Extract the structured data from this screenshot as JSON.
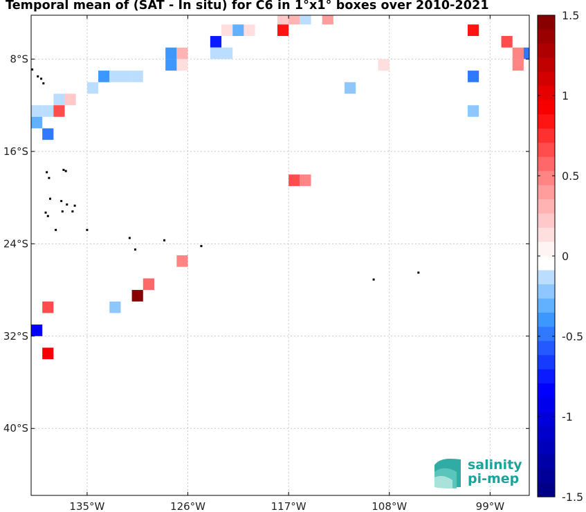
{
  "title": "Temporal mean of (SAT - In situ) for C6 in 1°x1° boxes over 2010-2021",
  "axes": {
    "x_ticks": [
      {
        "label": "135°W",
        "value": -135
      },
      {
        "label": "126°W",
        "value": -126
      },
      {
        "label": "117°W",
        "value": -117
      },
      {
        "label": "108°W",
        "value": -108
      },
      {
        "label": "99°W",
        "value": -99
      }
    ],
    "y_ticks": [
      {
        "label": "8°S",
        "value": -8
      },
      {
        "label": "16°S",
        "value": -16
      },
      {
        "label": "24°S",
        "value": -24
      },
      {
        "label": "32°S",
        "value": -32
      },
      {
        "label": "40°S",
        "value": -40
      }
    ],
    "x_range": [
      -140,
      -95.5
    ],
    "y_range": [
      -45.8,
      -4.2
    ]
  },
  "colorbar": {
    "min": -1.5,
    "max": 1.5,
    "levels": 34,
    "tick_labels": [
      "1.5",
      "1",
      "0.5",
      "0",
      "-0.5",
      "-1",
      "-1.5"
    ],
    "tick_values": [
      1.5,
      1,
      0.5,
      0,
      -0.5,
      -1,
      -1.5
    ],
    "negative_color": "#00007f",
    "zero_color": "#ffffff",
    "positive_color": "#7f0000"
  },
  "logo": {
    "line1": "salinity",
    "line2": "pi-mep",
    "color": "#1aa39a"
  },
  "chart_data": {
    "type": "heatmap",
    "title": "Temporal mean of (SAT - In situ) for C6 in 1°x1° boxes over 2010-2021",
    "x_unit": "longitude (degrees, negative = W)",
    "y_unit": "latitude (degrees, negative = S)",
    "cell_size_deg": 1,
    "cells": [
      {
        "lon": -117.5,
        "lat": -4.5,
        "value": 0.25
      },
      {
        "lon": -116.5,
        "lat": -4.5,
        "value": 0.3
      },
      {
        "lon": -115.5,
        "lat": -4.5,
        "value": -0.1
      },
      {
        "lon": -113.5,
        "lat": -4.5,
        "value": 0.4
      },
      {
        "lon": -122.5,
        "lat": -5.5,
        "value": 0.15
      },
      {
        "lon": -121.5,
        "lat": -5.5,
        "value": -0.35
      },
      {
        "lon": -120.5,
        "lat": -5.5,
        "value": 0.15
      },
      {
        "lon": -117.5,
        "lat": -5.5,
        "value": 0.85
      },
      {
        "lon": -100.5,
        "lat": -5.5,
        "value": 0.8
      },
      {
        "lon": -123.5,
        "lat": -6.5,
        "value": -0.75
      },
      {
        "lon": -97.5,
        "lat": -6.5,
        "value": 0.7
      },
      {
        "lon": -123.5,
        "lat": -7.5,
        "value": -0.1
      },
      {
        "lon": -122.5,
        "lat": -7.5,
        "value": -0.1
      },
      {
        "lon": -127.5,
        "lat": -7.5,
        "value": -0.4
      },
      {
        "lon": -126.5,
        "lat": -7.5,
        "value": 0.35
      },
      {
        "lon": -96.5,
        "lat": -7.5,
        "value": 0.5
      },
      {
        "lon": -95.5,
        "lat": -7.5,
        "value": -0.45
      },
      {
        "lon": -126.5,
        "lat": -8.5,
        "value": 0.15
      },
      {
        "lon": -127.5,
        "lat": -8.5,
        "value": -0.4
      },
      {
        "lon": -96.5,
        "lat": -8.5,
        "value": 0.45
      },
      {
        "lon": -108.5,
        "lat": -8.5,
        "value": 0.12
      },
      {
        "lon": -133.5,
        "lat": -9.5,
        "value": -0.4
      },
      {
        "lon": -132.5,
        "lat": -9.5,
        "value": -0.1
      },
      {
        "lon": -131.5,
        "lat": -9.5,
        "value": -0.1
      },
      {
        "lon": -130.5,
        "lat": -9.5,
        "value": -0.1
      },
      {
        "lon": -100.5,
        "lat": -9.5,
        "value": -0.45
      },
      {
        "lon": -134.5,
        "lat": -10.5,
        "value": -0.15
      },
      {
        "lon": -111.5,
        "lat": -10.5,
        "value": -0.25
      },
      {
        "lon": -137.5,
        "lat": -11.5,
        "value": -0.1
      },
      {
        "lon": -136.5,
        "lat": -11.5,
        "value": 0.2
      },
      {
        "lon": -139.5,
        "lat": -12.5,
        "value": -0.1
      },
      {
        "lon": -138.5,
        "lat": -12.5,
        "value": -0.1
      },
      {
        "lon": -137.5,
        "lat": -12.5,
        "value": 0.65
      },
      {
        "lon": -100.5,
        "lat": -12.5,
        "value": -0.25
      },
      {
        "lon": -139.5,
        "lat": -13.5,
        "value": -0.35
      },
      {
        "lon": -138.5,
        "lat": -14.5,
        "value": -0.5
      },
      {
        "lon": -116.5,
        "lat": -18.5,
        "value": 0.65
      },
      {
        "lon": -115.5,
        "lat": -18.5,
        "value": 0.45
      },
      {
        "lon": -126.5,
        "lat": -25.5,
        "value": 0.45
      },
      {
        "lon": -129.5,
        "lat": -27.5,
        "value": 0.55
      },
      {
        "lon": -130.5,
        "lat": -28.5,
        "value": 1.45
      },
      {
        "lon": -132.5,
        "lat": -29.5,
        "value": -0.25
      },
      {
        "lon": -138.5,
        "lat": -29.5,
        "value": 0.65
      },
      {
        "lon": -139.5,
        "lat": -31.5,
        "value": -0.85
      },
      {
        "lon": -138.5,
        "lat": -33.5,
        "value": 0.95
      }
    ],
    "islands": [
      [
        -139.9,
        -8.9
      ],
      [
        -139.4,
        -9.5
      ],
      [
        -139.1,
        -9.7
      ],
      [
        -138.9,
        -10.1
      ],
      [
        -138.6,
        -17.8
      ],
      [
        -138.4,
        -18.3
      ],
      [
        -137.1,
        -17.6
      ],
      [
        -136.9,
        -17.7
      ],
      [
        -138.3,
        -20.1
      ],
      [
        -137.3,
        -20.3
      ],
      [
        -136.8,
        -20.6
      ],
      [
        -136.1,
        -20.7
      ],
      [
        -138.7,
        -21.3
      ],
      [
        -138.5,
        -21.6
      ],
      [
        -137.2,
        -21.2
      ],
      [
        -136.3,
        -21.2
      ],
      [
        -137.8,
        -22.8
      ],
      [
        -135.0,
        -22.8
      ],
      [
        -131.2,
        -23.5
      ],
      [
        -130.7,
        -24.5
      ],
      [
        -128.1,
        -23.7
      ],
      [
        -124.8,
        -24.2
      ],
      [
        -109.4,
        -27.1
      ],
      [
        -105.4,
        -26.5
      ]
    ]
  }
}
